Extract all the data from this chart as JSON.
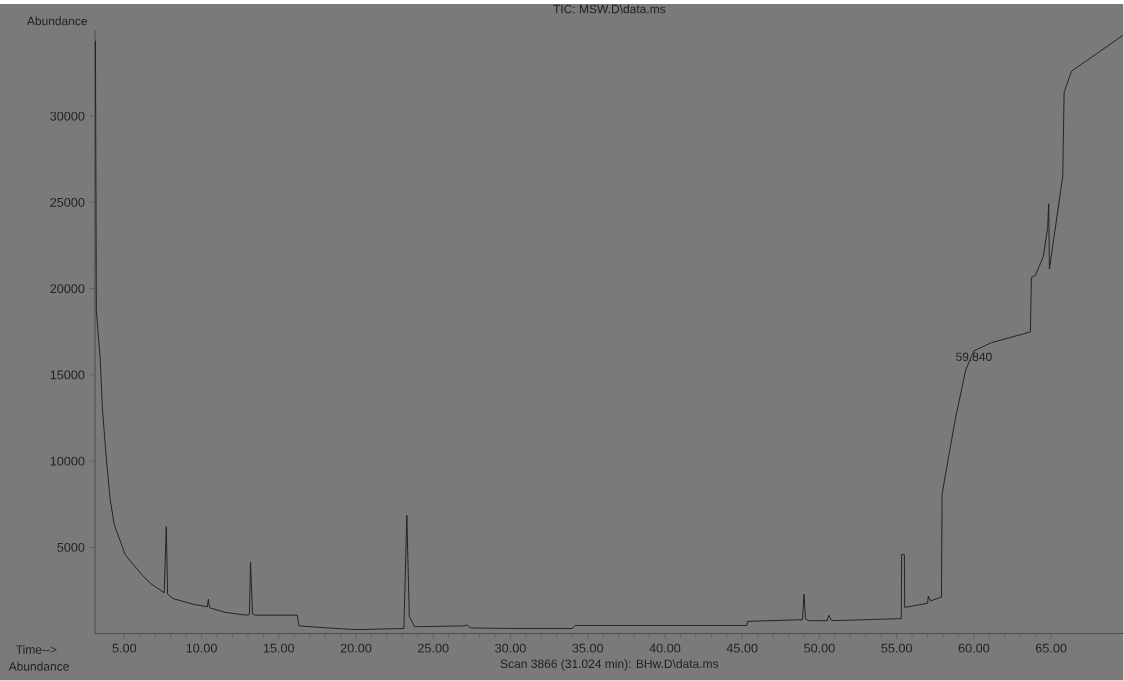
{
  "chart_data": {
    "type": "line",
    "title": "TIC: MSW.D\\data.ms",
    "xlabel": "Time-->",
    "ylabel": "Abundance",
    "color": "#1e1e1e",
    "line_style": "solid",
    "marker": "none",
    "xlim": [
      3.1,
      69.7
    ],
    "ylim": [
      0,
      35000
    ],
    "xticks": [
      {
        "value": 5,
        "label": "5.00"
      },
      {
        "value": 10,
        "label": "10.00"
      },
      {
        "value": 15,
        "label": "15.00"
      },
      {
        "value": 20,
        "label": "20.00"
      },
      {
        "value": 25,
        "label": "25.00"
      },
      {
        "value": 30,
        "label": "30.00"
      },
      {
        "value": 35,
        "label": "35.00"
      },
      {
        "value": 40,
        "label": "40.00"
      },
      {
        "value": 45,
        "label": "45.00"
      },
      {
        "value": 50,
        "label": "50.00"
      },
      {
        "value": 55,
        "label": "55.00"
      },
      {
        "value": 60,
        "label": "60.00"
      },
      {
        "value": 65,
        "label": "65.00"
      }
    ],
    "yticks": [
      5000,
      10000,
      15000,
      20000,
      25000,
      30000
    ],
    "x": [
      3.13,
      3.19,
      3.45,
      3.58,
      3.83,
      4.09,
      4.35,
      5.06,
      6.16,
      6.74,
      7.58,
      7.72,
      7.8,
      8.16,
      9.52,
      10.38,
      10.44,
      10.52,
      11.49,
      12.88,
      13.1,
      13.17,
      13.3,
      13.5,
      16.2,
      16.3,
      18.0,
      20.0,
      23.1,
      23.29,
      23.45,
      23.8,
      27.0,
      27.2,
      27.4,
      30.0,
      34.0,
      34.2,
      45.3,
      45.35,
      48.9,
      49.0,
      49.1,
      49.3,
      50.5,
      50.6,
      50.8,
      55.3,
      55.32,
      55.5,
      55.52,
      57.0,
      57.05,
      57.2,
      57.9,
      57.94,
      58.78,
      59.47,
      60.0,
      61.14,
      63.66,
      63.72,
      63.99,
      64.5,
      64.78,
      64.84,
      64.89,
      65.75,
      65.84,
      66.32,
      69.64
    ],
    "values": [
      34370,
      18740,
      15800,
      13090,
      10210,
      7730,
      6320,
      4570,
      3390,
      2880,
      2370,
      6200,
      2300,
      2030,
      1690,
      1560,
      2000,
      1500,
      1240,
      1070,
      1100,
      4150,
      1150,
      1070,
      1070,
      450,
      340,
      230,
      300,
      6850,
      1000,
      400,
      450,
      510,
      330,
      300,
      300,
      470,
      470,
      710,
      810,
      2280,
      850,
      750,
      750,
      1070,
      750,
      870,
      4580,
      4580,
      1520,
      1760,
      2170,
      1900,
      2120,
      8100,
      12360,
      15290,
      16390,
      16870,
      17490,
      20650,
      20780,
      21880,
      23590,
      24920,
      21150,
      26500,
      31390,
      32610,
      34680
    ],
    "annotations": [
      {
        "text": "59.840",
        "x": 60.0,
        "y": 16390
      },
      "Scan 3866 (31.024 min): BHw.D\\data.ms",
      "Abundance"
    ]
  }
}
